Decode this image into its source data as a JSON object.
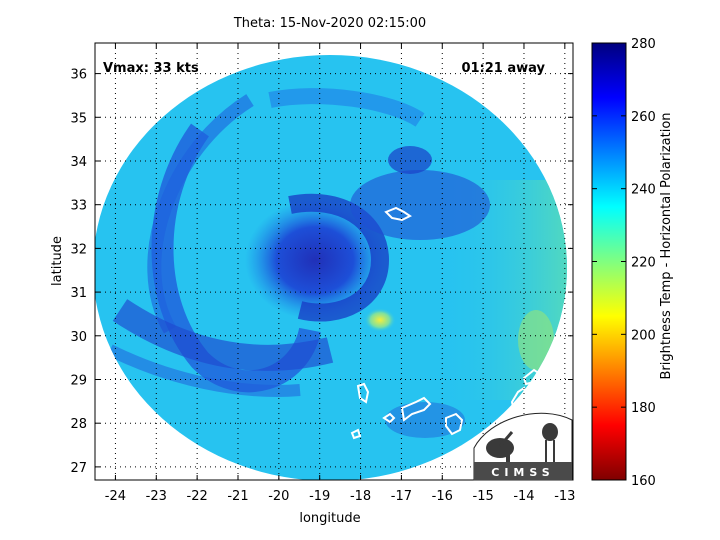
{
  "title": "Theta: 15-Nov-2020 02:15:00",
  "annotations": {
    "vmax": "Vmax: 33 kts",
    "time_away": "01:21 away"
  },
  "axes": {
    "xlabel": "longitude",
    "ylabel": "latitude",
    "x_ticks": [
      -24,
      -23,
      -22,
      -21,
      -20,
      -19,
      -18,
      -17,
      -16,
      -15,
      -14,
      -13
    ],
    "y_ticks": [
      27,
      28,
      29,
      30,
      31,
      32,
      33,
      34,
      35,
      36
    ],
    "xlim": [
      -24.5,
      -12.8
    ],
    "ylim": [
      26.7,
      36.7
    ],
    "grid": true
  },
  "colorbar": {
    "label": "Brightness Temp - Horizontal Polarization",
    "ticks": [
      160,
      180,
      200,
      220,
      240,
      260,
      280
    ],
    "range": [
      160,
      280
    ],
    "colormap": "jet",
    "colors": [
      "#7f0000",
      "#ff0000",
      "#ff8000",
      "#ffff00",
      "#80ff80",
      "#00ffff",
      "#0080ff",
      "#0000ff",
      "#00007f"
    ]
  },
  "swath": {
    "center_lon": -18.6,
    "center_lat": 31.3,
    "background_color": "#27c3f0",
    "core_color": "#1a3ccc",
    "warm_spot_color": "#f2f040"
  },
  "storm_center": {
    "lon": -19.2,
    "lat": 31.9
  },
  "logo": {
    "text": "CIMSS"
  }
}
